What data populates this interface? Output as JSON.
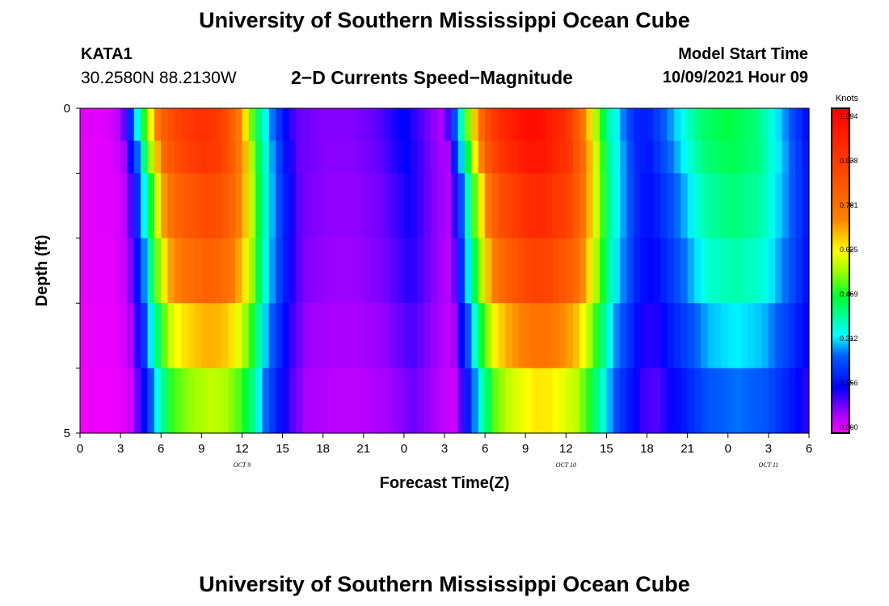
{
  "header": {
    "title": "University of Southern Mississippi Ocean Cube",
    "station_id": "KATA1",
    "coords": "30.2580N  88.2130W",
    "product": "2−D Currents Speed−Magnitude",
    "model_label": "Model Start Time",
    "model_time": "10/09/2021 Hour 09"
  },
  "footer": {
    "title": "University of Southern Mississippi Ocean Cube"
  },
  "chart_data": {
    "type": "heatmap",
    "xlabel": "Forecast Time(Z)",
    "ylabel": "Depth (ft)",
    "x_range_hours": [
      0,
      54
    ],
    "y_range": [
      0,
      5
    ],
    "x_tick_labels": [
      "0",
      "3",
      "6",
      "9",
      "12",
      "15",
      "18",
      "21",
      "0",
      "3",
      "6",
      "9",
      "12",
      "15",
      "18",
      "21",
      "0",
      "3",
      "6"
    ],
    "y_tick_labels": [
      "0",
      "5"
    ],
    "date_labels": [
      {
        "text": "OCT 9",
        "hour": 12
      },
      {
        "text": "OCT 10",
        "hour": 36
      },
      {
        "text": "OCT 11",
        "hour": 51
      }
    ],
    "colorbar": {
      "unit": "Knots",
      "min": 0.0,
      "max": 1.094,
      "tick_labels": [
        "0.000",
        "0.156",
        "0.312",
        "0.469",
        "0.625",
        "0.781",
        "0.938",
        "1.094"
      ]
    },
    "depth_rows_ft": [
      0.25,
      0.75,
      1.75,
      2.75,
      3.75,
      4.5
    ],
    "speed_profile_knots": {
      "hours": [
        0,
        1,
        2,
        3,
        4,
        5,
        6,
        7,
        8,
        9,
        10,
        11,
        12,
        13,
        14,
        15,
        16,
        18,
        20,
        22,
        24,
        25,
        26,
        27,
        28,
        29,
        30,
        31,
        32,
        33,
        34,
        35,
        36,
        37,
        38,
        39,
        40,
        41,
        42,
        44,
        46,
        48,
        50,
        52,
        54
      ],
      "surface_values": [
        0.02,
        0.02,
        0.02,
        0.05,
        0.25,
        0.55,
        0.8,
        0.88,
        0.92,
        0.95,
        0.93,
        0.85,
        0.7,
        0.45,
        0.3,
        0.18,
        0.1,
        0.08,
        0.08,
        0.1,
        0.16,
        0.12,
        0.08,
        0.05,
        0.3,
        0.6,
        0.85,
        0.95,
        1.0,
        1.05,
        1.05,
        1.0,
        0.95,
        0.8,
        0.6,
        0.4,
        0.3,
        0.2,
        0.18,
        0.3,
        0.42,
        0.45,
        0.42,
        0.3,
        0.15
      ],
      "depth_factors": [
        1.0,
        0.98,
        0.92,
        0.85,
        0.72,
        0.6
      ],
      "row_peak_shift_hours": [
        0,
        0.2,
        0.4,
        0.5,
        0.6,
        0.7
      ]
    }
  }
}
